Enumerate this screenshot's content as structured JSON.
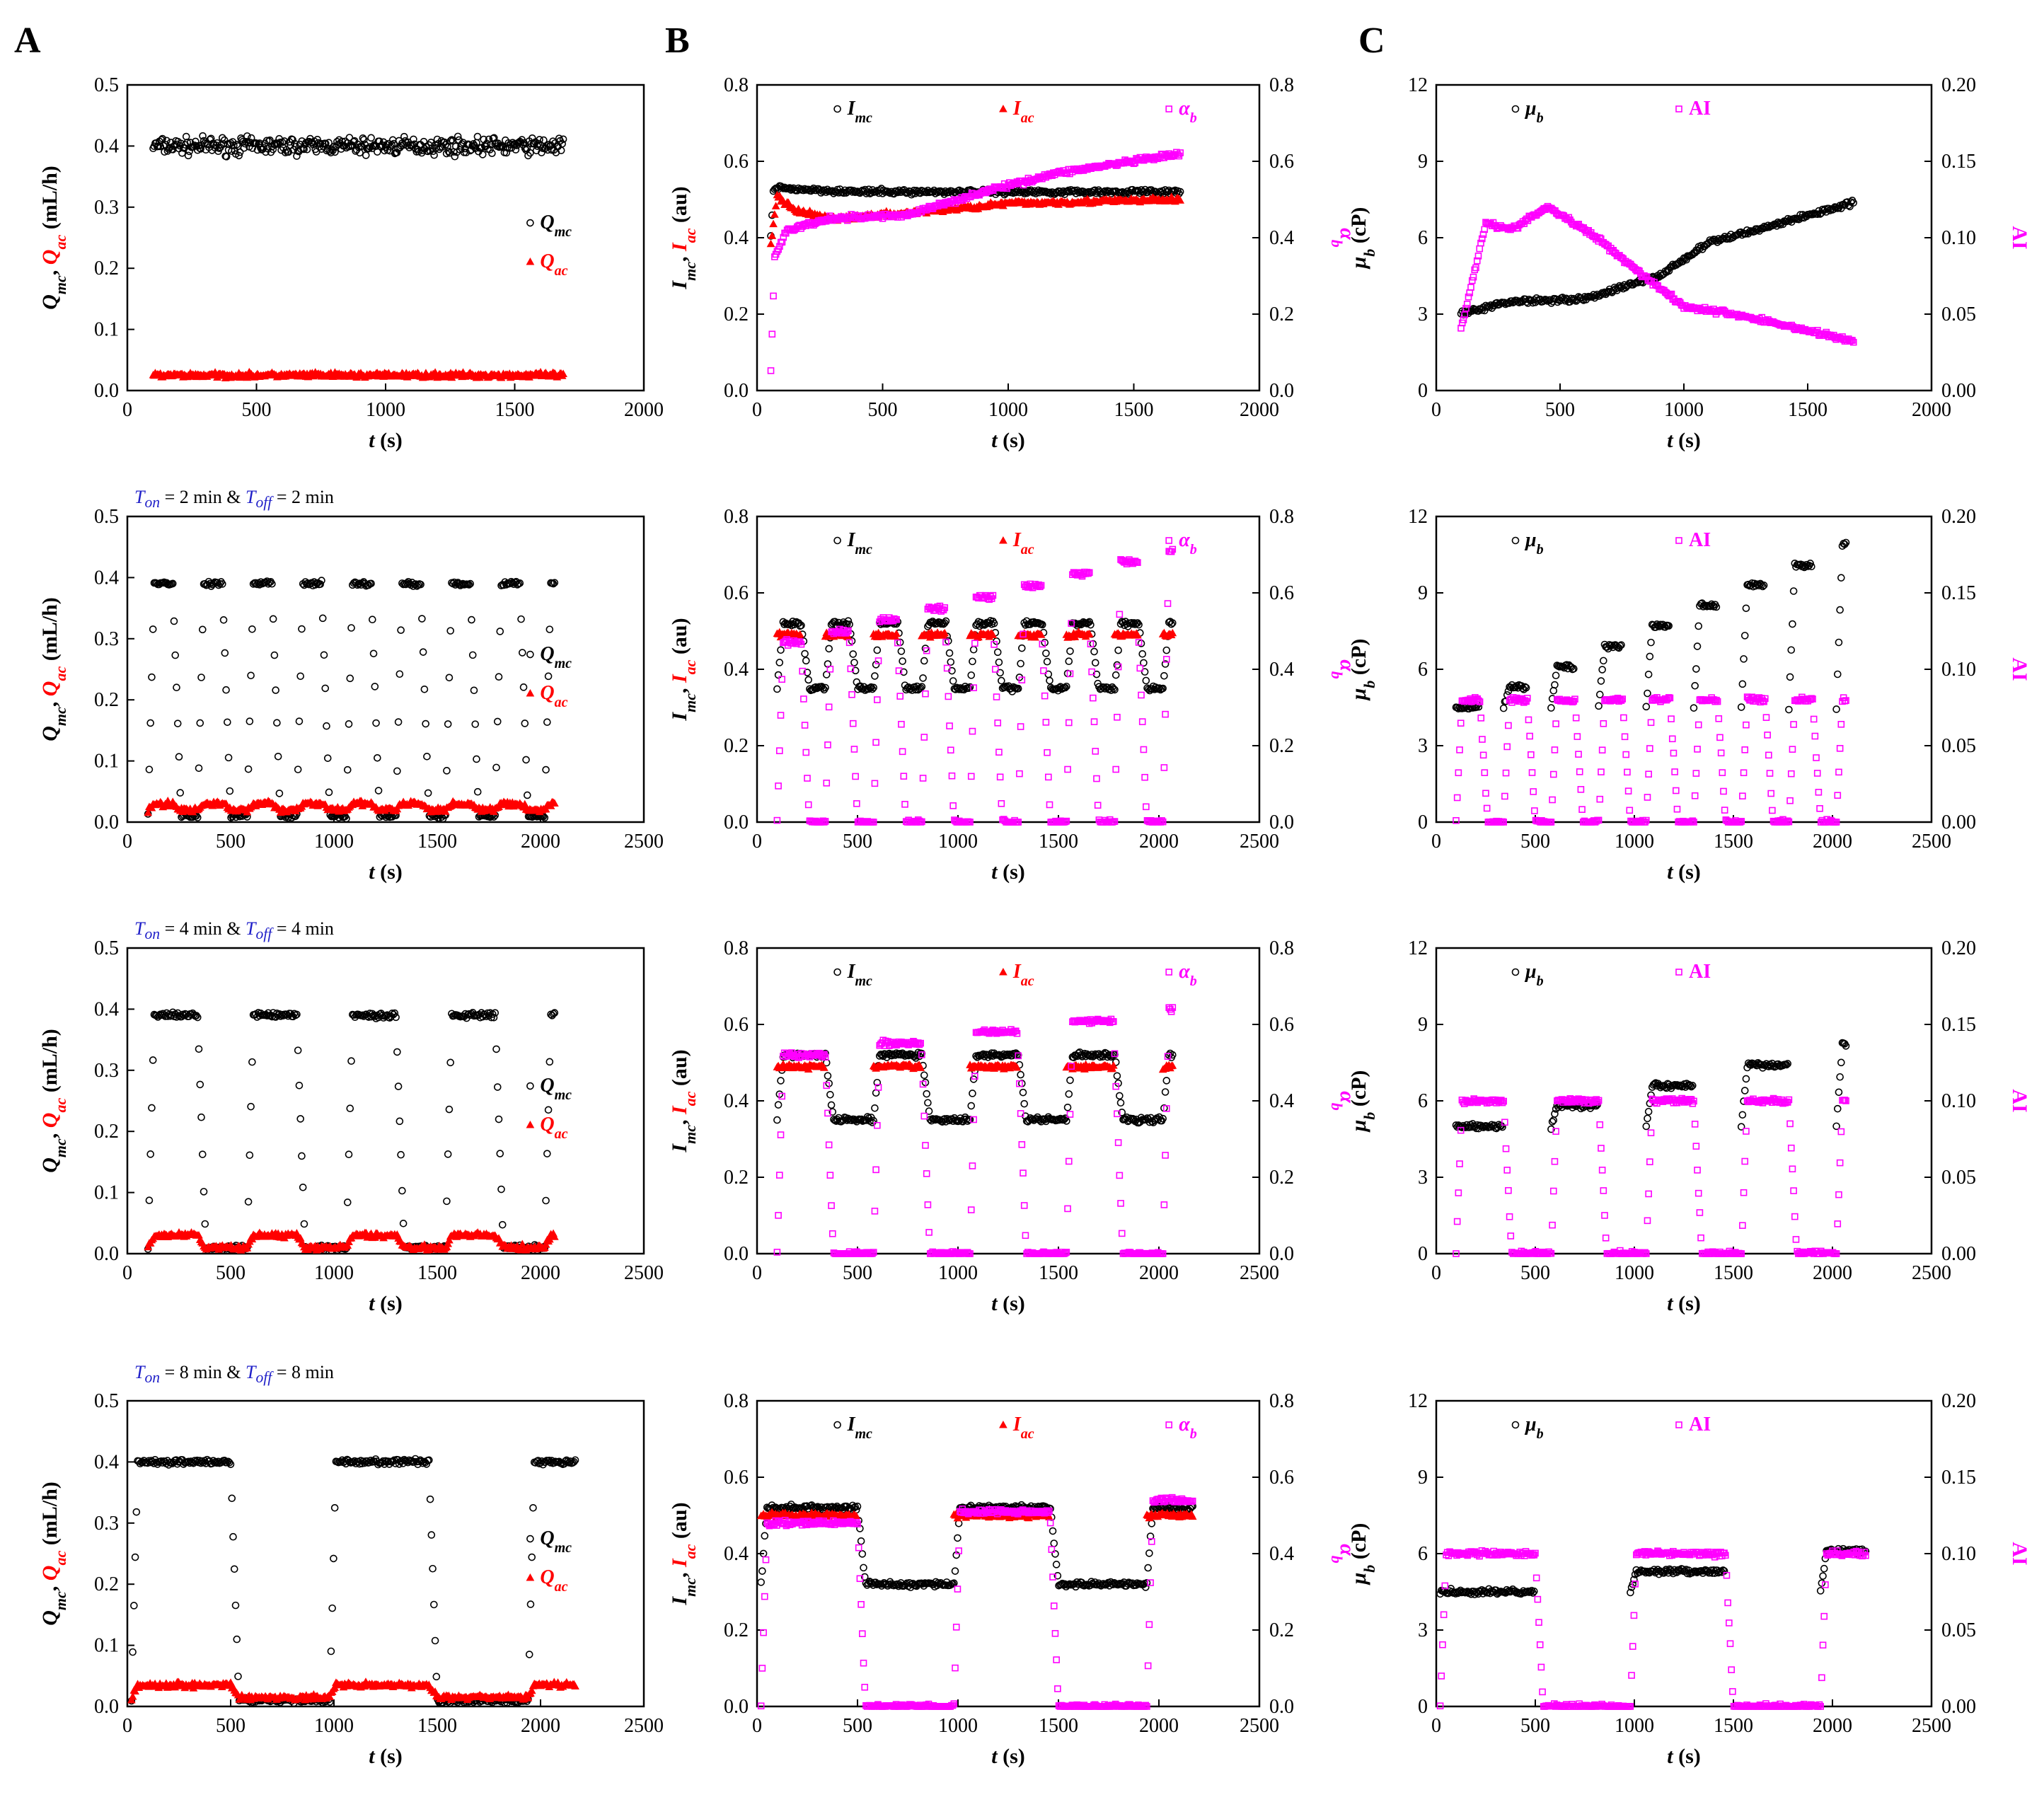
{
  "panel_labels": [
    "A",
    "B",
    "C"
  ],
  "conditions": [
    {
      "on_sym": "T",
      "on_sub": "on",
      "on_val": "= 2 min &",
      "off_sym": "T",
      "off_sub": "off",
      "off_val": "= 2 min"
    },
    {
      "on_sym": "T",
      "on_sub": "on",
      "on_val": "= 4 min &",
      "off_sym": "T",
      "off_sub": "off",
      "off_val": "= 4 min"
    },
    {
      "on_sym": "T",
      "on_sub": "on",
      "on_val": "= 8 min &",
      "off_sym": "T",
      "off_sub": "off",
      "off_val": "= 8 min"
    }
  ],
  "colors": {
    "black": "#000000",
    "red": "#ff0000",
    "magenta": "#ff00ff",
    "axis": "#000000"
  },
  "chart_data": [
    {
      "id": "A1",
      "type": "scatter",
      "xlabel": "t (s)",
      "ylabel": "Q_mc, Q_ac (mL/h)",
      "xlim": [
        0,
        2000
      ],
      "ylim": [
        0,
        0.5
      ],
      "xticks": [
        0,
        500,
        1000,
        1500,
        2000
      ],
      "yticks": [
        0,
        0.1,
        0.2,
        0.3,
        0.4,
        0.5
      ],
      "legend": [
        "Q_mc",
        "Q_ac"
      ],
      "series": [
        {
          "name": "Q_mc",
          "color": "black",
          "marker": "circle",
          "segments": [
            {
              "x0": 100,
              "x1": 1690,
              "level": 0.4,
              "noise": 0.02
            }
          ]
        },
        {
          "name": "Q_ac",
          "color": "red",
          "marker": "triangle",
          "segments": [
            {
              "x0": 100,
              "x1": 1690,
              "level": 0.025,
              "noise": 0.006
            }
          ]
        }
      ]
    },
    {
      "id": "B1",
      "type": "scatter",
      "xlabel": "t (s)",
      "ylabel": "I_mc, I_ac (au)",
      "y2label": "α_b",
      "xlim": [
        0,
        2000
      ],
      "ylim": [
        0,
        0.8
      ],
      "y2lim": [
        0,
        0.8
      ],
      "xticks": [
        0,
        500,
        1000,
        1500,
        2000
      ],
      "yticks": [
        0,
        0.2,
        0.4,
        0.6,
        0.8
      ],
      "y2ticks": [
        0,
        0.2,
        0.4,
        0.6,
        0.8
      ],
      "legend": [
        "I_mc",
        "I_ac",
        "α_b"
      ],
      "series": [
        {
          "name": "I_mc",
          "color": "black",
          "marker": "circle",
          "points": [
            [
              55,
              0.4
            ],
            [
              65,
              0.52
            ],
            [
              80,
              0.53
            ],
            [
              400,
              0.52
            ],
            [
              1000,
              0.52
            ],
            [
              1690,
              0.52
            ]
          ]
        },
        {
          "name": "I_ac",
          "color": "red",
          "marker": "triangle",
          "points": [
            [
              55,
              0.38
            ],
            [
              80,
              0.51
            ],
            [
              150,
              0.47
            ],
            [
              300,
              0.45
            ],
            [
              700,
              0.47
            ],
            [
              1000,
              0.49
            ],
            [
              1690,
              0.5
            ]
          ]
        },
        {
          "name": "α_b",
          "color": "magenta",
          "marker": "square",
          "points": [
            [
              55,
              0.05
            ],
            [
              70,
              0.35
            ],
            [
              120,
              0.42
            ],
            [
              300,
              0.45
            ],
            [
              600,
              0.46
            ],
            [
              900,
              0.52
            ],
            [
              1200,
              0.57
            ],
            [
              1500,
              0.6
            ],
            [
              1690,
              0.62
            ]
          ]
        }
      ]
    },
    {
      "id": "C1",
      "type": "scatter",
      "xlabel": "t (s)",
      "ylabel": "μ_b (cP)",
      "y2label": "AI",
      "xlim": [
        0,
        2000
      ],
      "ylim": [
        0,
        12
      ],
      "y2lim": [
        0,
        0.2
      ],
      "xticks": [
        0,
        500,
        1000,
        1500,
        2000
      ],
      "yticks": [
        0,
        3,
        6,
        9,
        12
      ],
      "y2ticks": [
        0,
        0.05,
        0.1,
        0.15,
        0.2
      ],
      "legend": [
        "μ_b",
        "AI"
      ],
      "series": [
        {
          "name": "μ_b",
          "color": "black",
          "marker": "circle",
          "points": [
            [
              100,
              3.0
            ],
            [
              300,
              3.5
            ],
            [
              600,
              3.6
            ],
            [
              900,
              4.5
            ],
            [
              1100,
              5.8
            ],
            [
              1400,
              6.6
            ],
            [
              1690,
              7.4
            ]
          ]
        },
        {
          "name": "AI",
          "color": "magenta",
          "marker": "square",
          "points": [
            [
              100,
              0.04
            ],
            [
              200,
              0.11
            ],
            [
              300,
              0.105
            ],
            [
              450,
              0.12
            ],
            [
              650,
              0.1
            ],
            [
              800,
              0.08
            ],
            [
              1000,
              0.055
            ],
            [
              1200,
              0.05
            ],
            [
              1400,
              0.043
            ],
            [
              1690,
              0.032
            ]
          ]
        }
      ]
    },
    {
      "id": "A2",
      "type": "scatter",
      "xlabel": "t (s)",
      "ylabel": "Q_mc, Q_ac (mL/h)",
      "xlim": [
        0,
        2500
      ],
      "ylim": [
        0,
        0.5
      ],
      "xticks": [
        0,
        500,
        1000,
        1500,
        2000,
        2500
      ],
      "yticks": [
        0,
        0.1,
        0.2,
        0.3,
        0.4,
        0.5
      ],
      "legend": [
        "Q_mc",
        "Q_ac"
      ],
      "cycles": {
        "start": 100,
        "end": 2070,
        "on_s": 120,
        "off_s": 120
      },
      "series": [
        {
          "name": "Q_mc",
          "color": "black",
          "marker": "circle",
          "on_level": 0.39,
          "off_level": 0.01
        },
        {
          "name": "Q_ac",
          "color": "red",
          "marker": "triangle",
          "on_level": 0.03,
          "off_level": 0.02
        }
      ]
    },
    {
      "id": "B2",
      "type": "scatter",
      "xlabel": "t (s)",
      "ylabel": "I_mc, I_ac (au)",
      "y2label": "α_b",
      "xlim": [
        0,
        2500
      ],
      "ylim": [
        0,
        0.8
      ],
      "y2lim": [
        0,
        0.8
      ],
      "xticks": [
        0,
        500,
        1000,
        1500,
        2000,
        2500
      ],
      "yticks": [
        0,
        0.2,
        0.4,
        0.6,
        0.8
      ],
      "y2ticks": [
        0,
        0.2,
        0.4,
        0.6,
        0.8
      ],
      "legend": [
        "I_mc",
        "I_ac",
        "α_b"
      ],
      "cycles": {
        "start": 100,
        "end": 2070,
        "on_s": 120,
        "off_s": 120
      },
      "series": [
        {
          "name": "I_mc",
          "color": "black",
          "marker": "circle",
          "on_level": 0.52,
          "off_level": 0.35
        },
        {
          "name": "I_ac",
          "color": "red",
          "marker": "triangle",
          "on_level": 0.49,
          "off_level": null
        },
        {
          "name": "α_b",
          "color": "magenta",
          "marker": "square",
          "on_level": 0.47,
          "off_level": 0.0
        }
      ]
    },
    {
      "id": "C2",
      "type": "scatter",
      "xlabel": "t (s)",
      "ylabel": "μ_b (cP)",
      "y2label": "AI",
      "xlim": [
        0,
        2500
      ],
      "ylim": [
        0,
        12
      ],
      "y2lim": [
        0,
        0.2
      ],
      "xticks": [
        0,
        500,
        1000,
        1500,
        2000,
        2500
      ],
      "yticks": [
        0,
        3,
        6,
        9,
        12
      ],
      "y2ticks": [
        0,
        0.05,
        0.1,
        0.15,
        0.2
      ],
      "legend": [
        "μ_b",
        "AI"
      ],
      "cycles": {
        "start": 100,
        "end": 2070,
        "on_s": 120,
        "off_s": 120
      },
      "series": [
        {
          "name": "μ_b",
          "color": "black",
          "marker": "circle",
          "on_level": 4.5,
          "off_level": null
        },
        {
          "name": "AI",
          "color": "magenta",
          "marker": "square",
          "on_level": 0.08,
          "off_level": 0.0
        }
      ]
    },
    {
      "id": "A3",
      "type": "scatter",
      "xlabel": "t (s)",
      "ylabel": "Q_mc, Q_ac (mL/h)",
      "xlim": [
        0,
        2500
      ],
      "ylim": [
        0,
        0.5
      ],
      "xticks": [
        0,
        500,
        1000,
        1500,
        2000,
        2500
      ],
      "yticks": [
        0,
        0.1,
        0.2,
        0.3,
        0.4,
        0.5
      ],
      "legend": [
        "Q_mc",
        "Q_ac"
      ],
      "cycles": {
        "start": 100,
        "end": 2070,
        "on_s": 240,
        "off_s": 240
      },
      "series": [
        {
          "name": "Q_mc",
          "color": "black",
          "marker": "circle",
          "on_level": 0.39,
          "off_level": 0.01
        },
        {
          "name": "Q_ac",
          "color": "red",
          "marker": "triangle",
          "on_level": 0.03,
          "off_level": 0.01
        }
      ]
    },
    {
      "id": "B3",
      "type": "scatter",
      "xlabel": "t (s)",
      "ylabel": "I_mc, I_ac (au)",
      "y2label": "α_b",
      "xlim": [
        0,
        2500
      ],
      "ylim": [
        0,
        0.8
      ],
      "y2lim": [
        0,
        0.8
      ],
      "xticks": [
        0,
        500,
        1000,
        1500,
        2000,
        2500
      ],
      "yticks": [
        0,
        0.2,
        0.4,
        0.6,
        0.8
      ],
      "y2ticks": [
        0,
        0.2,
        0.4,
        0.6,
        0.8
      ],
      "legend": [
        "I_mc",
        "I_ac",
        "α_b"
      ],
      "cycles": {
        "start": 100,
        "end": 2070,
        "on_s": 240,
        "off_s": 240
      },
      "series": [
        {
          "name": "I_mc",
          "color": "black",
          "marker": "circle",
          "on_level": 0.52,
          "off_level": 0.35
        },
        {
          "name": "I_ac",
          "color": "red",
          "marker": "triangle",
          "on_level": 0.49,
          "off_level": null
        },
        {
          "name": "α_b",
          "color": "magenta",
          "marker": "square",
          "on_level": 0.52,
          "off_level": 0.0
        }
      ]
    },
    {
      "id": "C3",
      "type": "scatter",
      "xlabel": "t (s)",
      "ylabel": "μ_b (cP)",
      "y2label": "AI",
      "xlim": [
        0,
        2500
      ],
      "ylim": [
        0,
        12
      ],
      "y2lim": [
        0,
        0.2
      ],
      "xticks": [
        0,
        500,
        1000,
        1500,
        2000,
        2500
      ],
      "yticks": [
        0,
        3,
        6,
        9,
        12
      ],
      "y2ticks": [
        0,
        0.05,
        0.1,
        0.15,
        0.2
      ],
      "legend": [
        "μ_b",
        "AI"
      ],
      "cycles": {
        "start": 100,
        "end": 2070,
        "on_s": 240,
        "off_s": 240
      },
      "series": [
        {
          "name": "μ_b",
          "color": "black",
          "marker": "circle",
          "on_level": 5.0,
          "off_level": null
        },
        {
          "name": "AI",
          "color": "magenta",
          "marker": "square",
          "on_level": 0.1,
          "off_level": 0.0
        }
      ]
    },
    {
      "id": "A4",
      "type": "scatter",
      "xlabel": "t (s)",
      "ylabel": "Q_mc, Q_ac (mL/h)",
      "xlim": [
        0,
        2500
      ],
      "ylim": [
        0,
        0.5
      ],
      "xticks": [
        0,
        500,
        1000,
        1500,
        2000,
        2500
      ],
      "yticks": [
        0,
        0.1,
        0.2,
        0.3,
        0.4,
        0.5
      ],
      "legend": [
        "Q_mc",
        "Q_ac"
      ],
      "cycles": {
        "start": 20,
        "end": 2170,
        "on_s": 480,
        "off_s": 480
      },
      "series": [
        {
          "name": "Q_mc",
          "color": "black",
          "marker": "circle",
          "on_level": 0.4,
          "off_level": 0.01
        },
        {
          "name": "Q_ac",
          "color": "red",
          "marker": "triangle",
          "on_level": 0.035,
          "off_level": 0.015
        }
      ]
    },
    {
      "id": "B4",
      "type": "scatter",
      "xlabel": "t (s)",
      "ylabel": "I_mc, I_ac (au)",
      "y2label": "α_b",
      "xlim": [
        0,
        2500
      ],
      "ylim": [
        0,
        0.8
      ],
      "y2lim": [
        0,
        0.8
      ],
      "xticks": [
        0,
        500,
        1000,
        1500,
        2000,
        2500
      ],
      "yticks": [
        0,
        0.2,
        0.4,
        0.6,
        0.8
      ],
      "y2ticks": [
        0,
        0.2,
        0.4,
        0.6,
        0.8
      ],
      "legend": [
        "I_mc",
        "I_ac",
        "α_b"
      ],
      "cycles": {
        "start": 20,
        "end": 2170,
        "on_s": 480,
        "off_s": 480
      },
      "series": [
        {
          "name": "I_mc",
          "color": "black",
          "marker": "circle",
          "on_level": 0.52,
          "off_level": 0.32
        },
        {
          "name": "I_ac",
          "color": "red",
          "marker": "triangle",
          "on_level": 0.5,
          "off_level": null
        },
        {
          "name": "α_b",
          "color": "magenta",
          "marker": "square",
          "on_level": 0.48,
          "off_level": 0.0
        }
      ]
    },
    {
      "id": "C4",
      "type": "scatter",
      "xlabel": "t (s)",
      "ylabel": "μ_b (cP)",
      "y2label": "AI",
      "xlim": [
        0,
        2500
      ],
      "ylim": [
        0,
        12
      ],
      "y2lim": [
        0,
        0.2
      ],
      "xticks": [
        0,
        500,
        1000,
        1500,
        2000,
        2500
      ],
      "yticks": [
        0,
        3,
        6,
        9,
        12
      ],
      "y2ticks": [
        0,
        0.05,
        0.1,
        0.15,
        0.2
      ],
      "legend": [
        "μ_b",
        "AI"
      ],
      "cycles": {
        "start": 20,
        "end": 2170,
        "on_s": 480,
        "off_s": 480
      },
      "series": [
        {
          "name": "μ_b",
          "color": "black",
          "marker": "circle",
          "on_level": 4.5,
          "off_level": null
        },
        {
          "name": "AI",
          "color": "magenta",
          "marker": "square",
          "on_level": 0.1,
          "off_level": 0.0
        }
      ]
    }
  ]
}
